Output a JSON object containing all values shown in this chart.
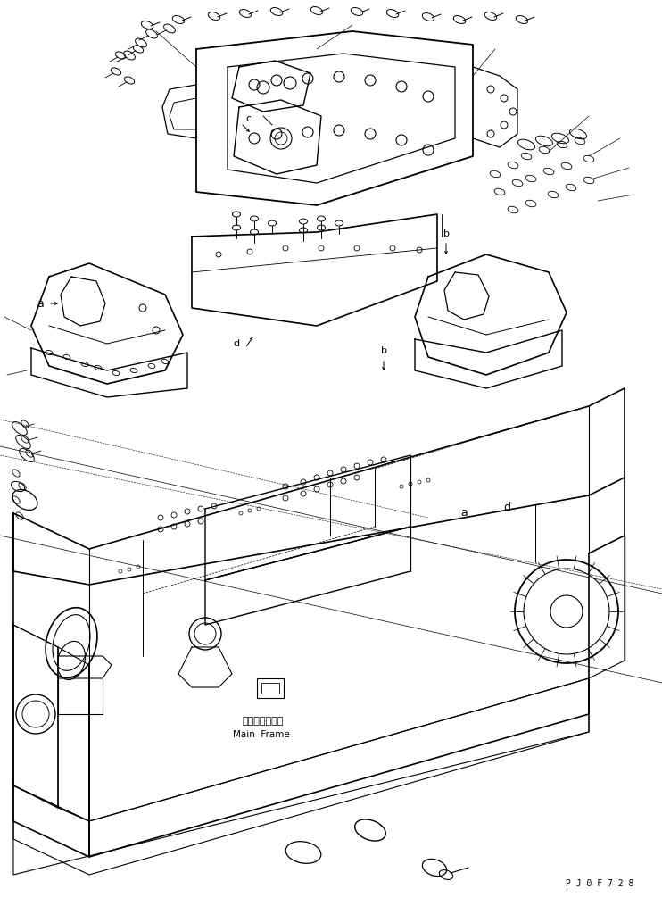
{
  "bg_color": "#ffffff",
  "fig_width": 7.42,
  "fig_height": 10.15,
  "dpi": 100,
  "watermark": "P J 0 F 7 2 8",
  "main_frame_jp": "メインフレーム",
  "main_frame_en": "Main  Frame",
  "lc": "#000000",
  "lw": 0.7
}
